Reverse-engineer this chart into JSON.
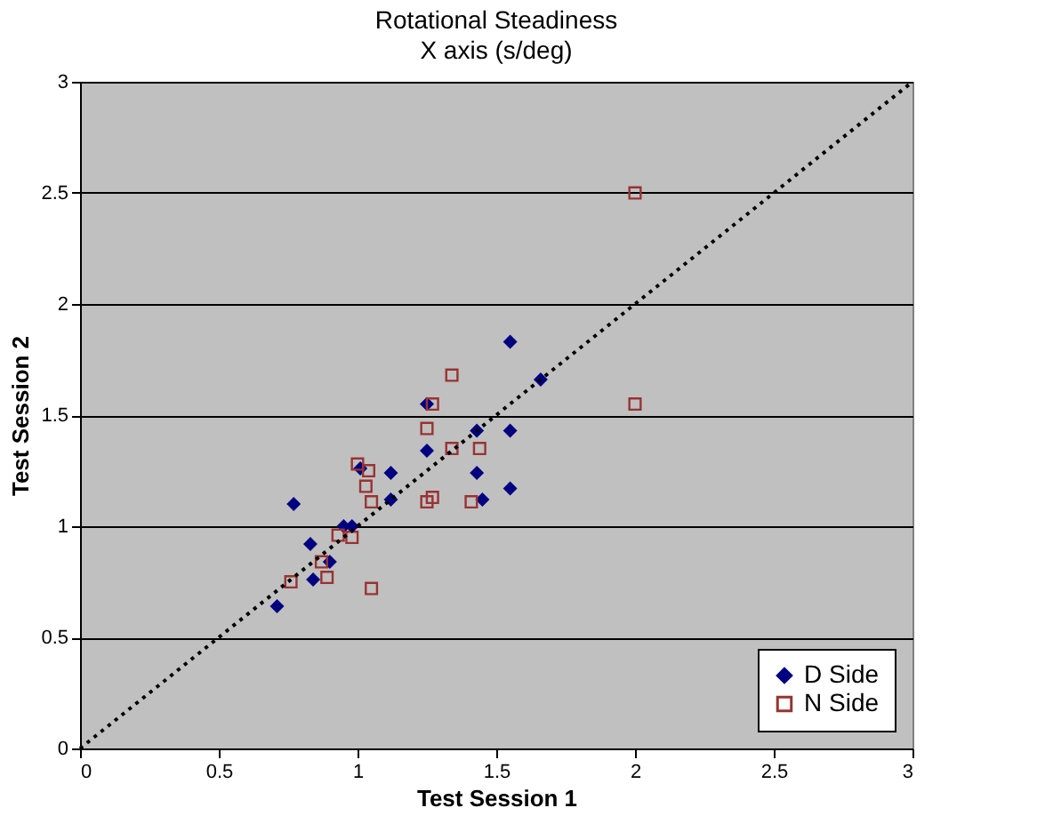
{
  "chart_data": {
    "type": "scatter",
    "title": "Rotational Steadiness",
    "subtitle": "X axis (s/deg)",
    "xlabel": "Test Session 1",
    "ylabel": "Test Session 2",
    "xlim": [
      0,
      3
    ],
    "ylim": [
      0,
      3
    ],
    "xticks": [
      0,
      0.5,
      1,
      1.5,
      2,
      2.5,
      3
    ],
    "yticks": [
      0,
      0.5,
      1,
      1.5,
      2,
      2.5,
      3
    ],
    "grid": "y",
    "legend": "bottom right",
    "series": [
      {
        "name": "D Side",
        "color": "#000080",
        "marker": "diamond",
        "x": [
          0.71,
          0.77,
          0.83,
          0.84,
          0.9,
          0.95,
          0.98,
          1.01,
          1.12,
          1.12,
          1.25,
          1.25,
          1.43,
          1.43,
          1.45,
          1.55,
          1.55,
          1.55,
          1.66
        ],
        "values": [
          0.64,
          1.1,
          0.92,
          0.76,
          0.84,
          1.0,
          1.0,
          1.26,
          1.12,
          1.24,
          1.34,
          1.55,
          1.43,
          1.24,
          1.12,
          1.83,
          1.43,
          1.17,
          1.66
        ]
      },
      {
        "name": "N Side",
        "color": "#993333",
        "marker": "square",
        "x": [
          0.76,
          0.87,
          0.89,
          0.93,
          0.98,
          1.0,
          1.03,
          1.04,
          1.05,
          1.05,
          1.25,
          1.27,
          1.25,
          1.27,
          1.34,
          1.34,
          1.41,
          1.44,
          2.0,
          2.0
        ],
        "values": [
          0.75,
          0.84,
          0.77,
          0.96,
          0.95,
          1.28,
          1.18,
          1.25,
          1.11,
          0.72,
          1.44,
          1.55,
          1.11,
          1.13,
          1.68,
          1.35,
          1.11,
          1.35,
          2.5,
          1.55
        ]
      },
      {
        "type": "line",
        "color": "#000000",
        "line_style": "dotted",
        "x": [
          0,
          3
        ],
        "values": [
          0,
          3
        ]
      }
    ]
  }
}
